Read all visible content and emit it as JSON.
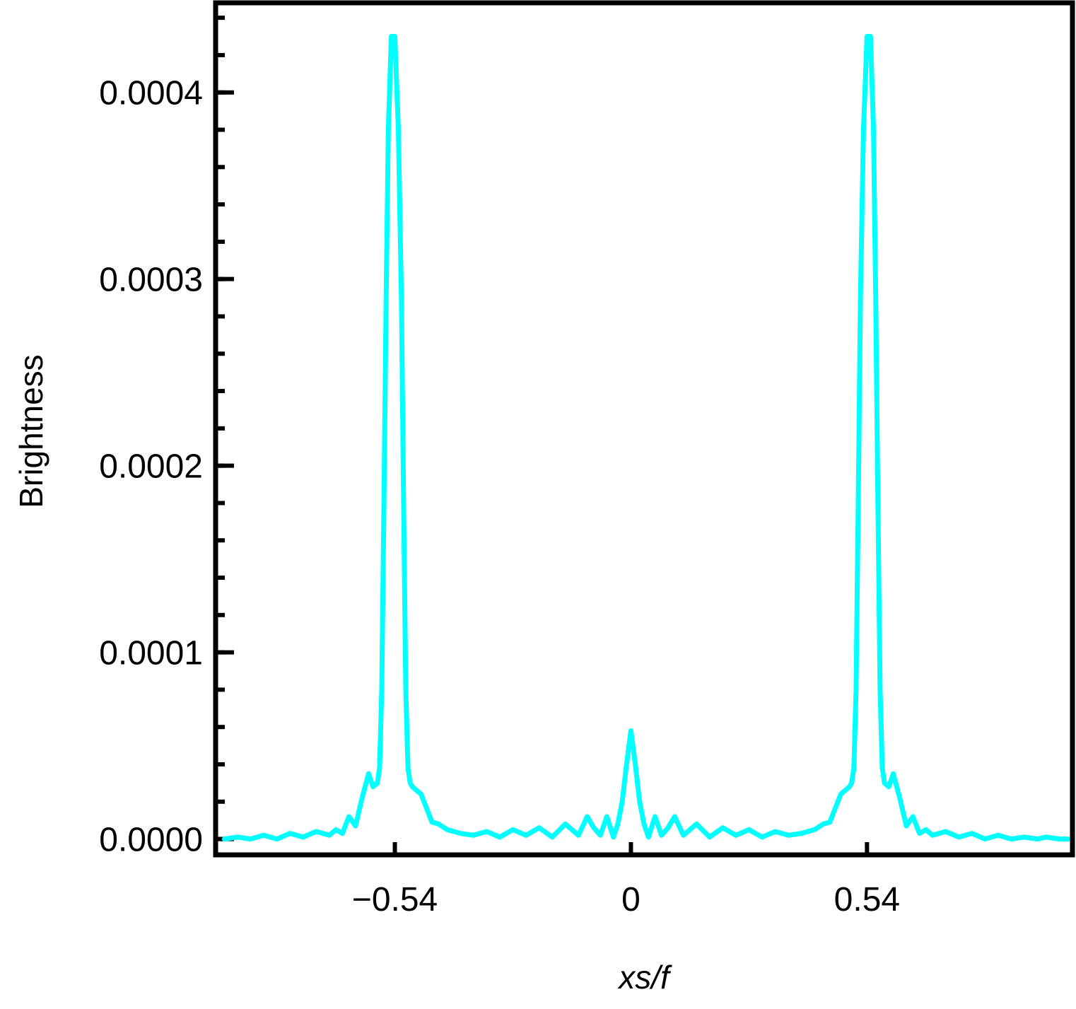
{
  "chart_data": {
    "type": "line",
    "title": "",
    "xlabel": "xs/f",
    "ylabel": "Brightness",
    "xlim": [
      -0.95,
      1.01
    ],
    "ylim": [
      -8.5e-06,
      0.000448
    ],
    "grid": false,
    "line_color": "#00FFFF",
    "frame_color": "#000000",
    "x_ticks": [
      {
        "value": -0.54,
        "label": "−0.54"
      },
      {
        "value": 0,
        "label": "0"
      },
      {
        "value": 0.54,
        "label": "0.54"
      }
    ],
    "y_ticks": [
      {
        "value": 0.0,
        "label": "0.0000"
      },
      {
        "value": 0.0001,
        "label": "0.0001"
      },
      {
        "value": 0.0002,
        "label": "0.0002"
      },
      {
        "value": 0.0003,
        "label": "0.0003"
      },
      {
        "value": 0.0004,
        "label": "0.0004"
      }
    ],
    "y_minor_step": 2e-05,
    "series": [
      {
        "name": "",
        "x": [
          -0.93,
          -0.9,
          -0.87,
          -0.84,
          -0.81,
          -0.78,
          -0.75,
          -0.72,
          -0.69,
          -0.675,
          -0.66,
          -0.645,
          -0.63,
          -0.615,
          -0.6,
          -0.59,
          -0.58,
          -0.575,
          -0.57,
          -0.565,
          -0.56,
          -0.555,
          -0.548,
          -0.54,
          -0.532,
          -0.525,
          -0.52,
          -0.515,
          -0.51,
          -0.505,
          -0.5,
          -0.49,
          -0.48,
          -0.47,
          -0.455,
          -0.44,
          -0.42,
          -0.39,
          -0.36,
          -0.33,
          -0.3,
          -0.27,
          -0.24,
          -0.21,
          -0.18,
          -0.15,
          -0.12,
          -0.1,
          -0.085,
          -0.07,
          -0.055,
          -0.04,
          -0.03,
          -0.02,
          -0.01,
          0,
          0.01,
          0.02,
          0.03,
          0.04,
          0.055,
          0.07,
          0.085,
          0.1,
          0.12,
          0.15,
          0.18,
          0.21,
          0.24,
          0.27,
          0.3,
          0.33,
          0.36,
          0.39,
          0.42,
          0.44,
          0.455,
          0.47,
          0.48,
          0.49,
          0.5,
          0.505,
          0.51,
          0.515,
          0.52,
          0.525,
          0.532,
          0.54,
          0.548,
          0.555,
          0.56,
          0.565,
          0.57,
          0.575,
          0.58,
          0.59,
          0.6,
          0.615,
          0.63,
          0.645,
          0.66,
          0.675,
          0.69,
          0.72,
          0.75,
          0.78,
          0.81,
          0.84,
          0.87,
          0.9,
          0.93,
          0.95,
          0.98,
          1.0
        ],
        "y": [
          0.0,
          1e-06,
          0.0,
          2e-06,
          0.0,
          3e-06,
          1e-06,
          4e-06,
          2e-06,
          5e-06,
          3e-06,
          1.2e-05,
          7e-06,
          2.2e-05,
          3.5e-05,
          2.8e-05,
          3e-05,
          3.8e-05,
          8e-05,
          0.00018,
          0.00029,
          0.00038,
          0.00043,
          0.00043,
          0.00038,
          0.00029,
          0.00018,
          8e-05,
          3.8e-05,
          3e-05,
          2.8e-05,
          2.6e-05,
          2.4e-05,
          1.8e-05,
          9e-06,
          8e-06,
          5e-06,
          3e-06,
          2e-06,
          4e-06,
          1e-06,
          5e-06,
          2e-06,
          6e-06,
          1e-06,
          8e-06,
          2e-06,
          1.2e-05,
          6e-06,
          2e-06,
          1.2e-05,
          1e-06,
          8e-06,
          2e-05,
          4e-05,
          5.8e-05,
          4e-05,
          2e-05,
          8e-06,
          1e-06,
          1.2e-05,
          2e-06,
          6e-06,
          1.2e-05,
          2e-06,
          8e-06,
          1e-06,
          6e-06,
          2e-06,
          5e-06,
          1e-06,
          4e-06,
          2e-06,
          3e-06,
          5e-06,
          8e-06,
          9e-06,
          1.8e-05,
          2.4e-05,
          2.6e-05,
          2.8e-05,
          3e-05,
          3.8e-05,
          8e-05,
          0.00018,
          0.00029,
          0.00038,
          0.00043,
          0.00043,
          0.00038,
          0.00029,
          0.00018,
          8e-05,
          3.8e-05,
          3e-05,
          2.8e-05,
          3.5e-05,
          2.2e-05,
          7e-06,
          1.2e-05,
          3e-06,
          5e-06,
          2e-06,
          4e-06,
          1e-06,
          3e-06,
          0.0,
          2e-06,
          0.0,
          1e-06,
          0.0,
          1e-06,
          0.0,
          0.0
        ]
      }
    ]
  }
}
